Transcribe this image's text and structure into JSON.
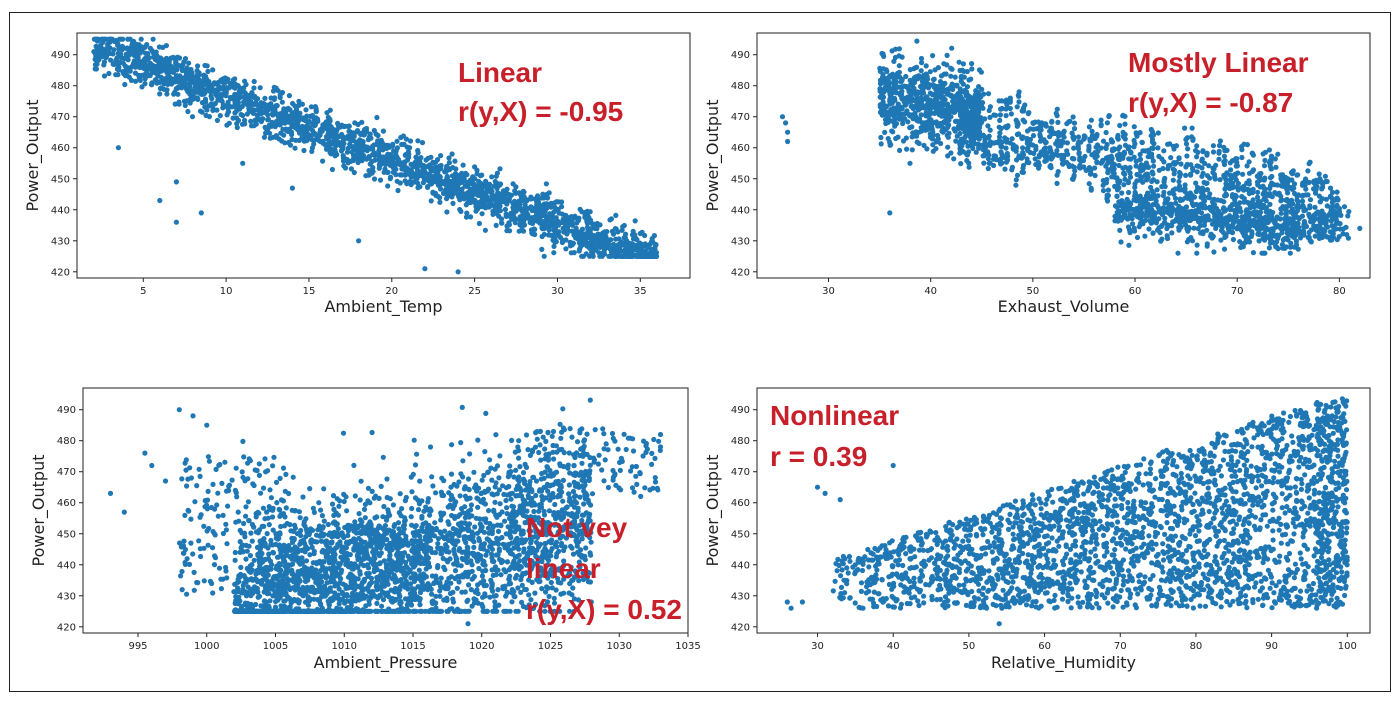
{
  "colors": {
    "points": "#1f77b4",
    "annotation": "#c8202a",
    "axes": "#222222",
    "frame": "#222222"
  },
  "chart_data": [
    {
      "type": "scatter",
      "xlabel": "Ambient_Temp",
      "ylabel": "Power_Output",
      "xlim": [
        1,
        38
      ],
      "ylim": [
        418,
        497
      ],
      "xticks": [
        5,
        10,
        15,
        20,
        25,
        30,
        35
      ],
      "yticks": [
        420,
        430,
        440,
        450,
        460,
        470,
        480,
        490
      ],
      "annotations": [
        "Linear",
        "r(y,X) = -0.95"
      ],
      "correlation": -0.95,
      "pattern": "linear",
      "outliers": [
        [
          3.5,
          460
        ],
        [
          6,
          443
        ],
        [
          7,
          449
        ],
        [
          7,
          436
        ],
        [
          8.5,
          439
        ],
        [
          18,
          430
        ],
        [
          22,
          421
        ],
        [
          24,
          420
        ],
        [
          11,
          455
        ],
        [
          14,
          447
        ]
      ]
    },
    {
      "type": "scatter",
      "xlabel": "Exhaust_Volume",
      "ylabel": "Power_Output",
      "xlim": [
        23,
        83
      ],
      "ylim": [
        418,
        497
      ],
      "xticks": [
        30,
        40,
        50,
        60,
        70,
        80
      ],
      "yticks": [
        420,
        430,
        440,
        450,
        460,
        470,
        480,
        490
      ],
      "annotations": [
        "Mostly Linear",
        "r(y,X) = -0.87"
      ],
      "correlation": -0.87,
      "pattern": "clustered_linear",
      "outliers": [
        [
          25.5,
          470
        ],
        [
          25.8,
          468
        ],
        [
          26,
          462
        ],
        [
          26,
          465
        ],
        [
          36,
          439
        ],
        [
          80.5,
          441
        ],
        [
          82,
          434
        ],
        [
          71,
          461
        ]
      ]
    },
    {
      "type": "scatter",
      "xlabel": "Ambient_Pressure",
      "ylabel": "Power_Output",
      "xlim": [
        991,
        1035
      ],
      "ylim": [
        418,
        497
      ],
      "xticks": [
        995,
        1000,
        1005,
        1010,
        1015,
        1020,
        1025,
        1030,
        1035
      ],
      "yticks": [
        420,
        430,
        440,
        450,
        460,
        470,
        480,
        490
      ],
      "annotations": [
        "Not vey",
        "linear",
        "r(y,X) = 0.52"
      ],
      "correlation": 0.52,
      "pattern": "weak_linear",
      "outliers": [
        [
          993,
          463
        ],
        [
          994,
          457
        ],
        [
          995.5,
          476
        ],
        [
          996,
          472
        ],
        [
          997,
          467
        ],
        [
          998,
          490
        ],
        [
          999,
          488
        ],
        [
          1000,
          485
        ],
        [
          1033,
          482
        ],
        [
          1033,
          478
        ],
        [
          1019,
          421
        ]
      ]
    },
    {
      "type": "scatter",
      "xlabel": "Relative_Humidity",
      "ylabel": "Power_Output",
      "xlim": [
        22,
        103
      ],
      "ylim": [
        418,
        497
      ],
      "xticks": [
        30,
        40,
        50,
        60,
        70,
        80,
        90,
        100
      ],
      "yticks": [
        420,
        430,
        440,
        450,
        460,
        470,
        480,
        490
      ],
      "annotations": [
        "Nonlinear",
        "r = 0.39"
      ],
      "correlation": 0.39,
      "pattern": "nonlinear",
      "outliers": [
        [
          26,
          428
        ],
        [
          26.5,
          426
        ],
        [
          28,
          428
        ],
        [
          30,
          465
        ],
        [
          31,
          463
        ],
        [
          33,
          461
        ],
        [
          36,
          426
        ],
        [
          54,
          421
        ],
        [
          40,
          472
        ]
      ]
    }
  ]
}
